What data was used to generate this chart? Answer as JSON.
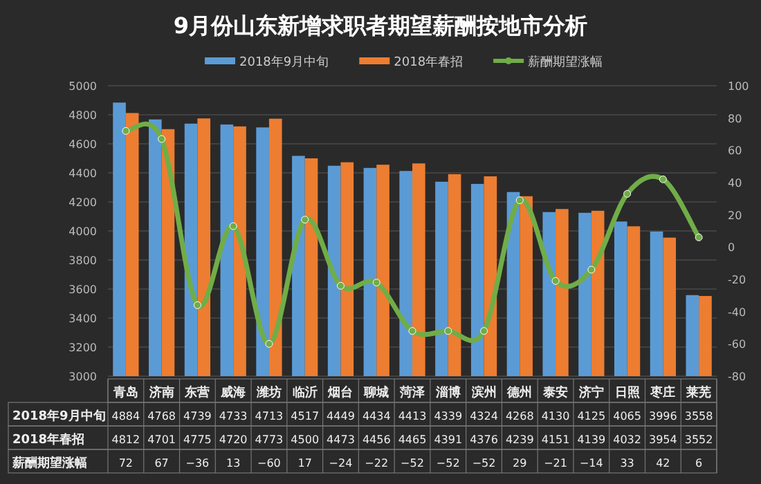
{
  "chart_data": {
    "type": "bar",
    "title": "9月份山东新增求职者期望薪酬按地市分析",
    "categories": [
      "青岛",
      "济南",
      "东营",
      "威海",
      "潍坊",
      "临沂",
      "烟台",
      "聊城",
      "菏泽",
      "淄博",
      "滨州",
      "德州",
      "泰安",
      "济宁",
      "日照",
      "枣庄",
      "莱芜"
    ],
    "series": [
      {
        "name": "2018年9月中旬",
        "color": "#5b9bd5",
        "values": [
          4884,
          4768,
          4739,
          4733,
          4713,
          4517,
          4449,
          4434,
          4413,
          4339,
          4324,
          4268,
          4130,
          4125,
          4065,
          3996,
          3558
        ]
      },
      {
        "name": "2018年春招",
        "color": "#ed7d31",
        "values": [
          4812,
          4701,
          4775,
          4720,
          4773,
          4500,
          4473,
          4456,
          4465,
          4391,
          4376,
          4239,
          4151,
          4139,
          4032,
          3954,
          3552
        ]
      },
      {
        "name": "薪酬期望涨幅",
        "color": "#70ad47",
        "type": "line",
        "axis": "y2",
        "marker": "circle",
        "values": [
          72,
          67,
          -36,
          13,
          -60,
          17,
          -24,
          -22,
          -52,
          -52,
          -52,
          29,
          -21,
          -14,
          33,
          42,
          6
        ]
      }
    ],
    "ylim": [
      3000,
      5000
    ],
    "yticks": [
      3000,
      3200,
      3400,
      3600,
      3800,
      4000,
      4200,
      4400,
      4600,
      4800,
      5000
    ],
    "y2lim": [
      -80,
      100
    ],
    "y2ticks": [
      -80,
      -60,
      -40,
      -20,
      0,
      20,
      40,
      60,
      80,
      100
    ],
    "grid": "y",
    "legend": "top",
    "data_labels": true
  }
}
